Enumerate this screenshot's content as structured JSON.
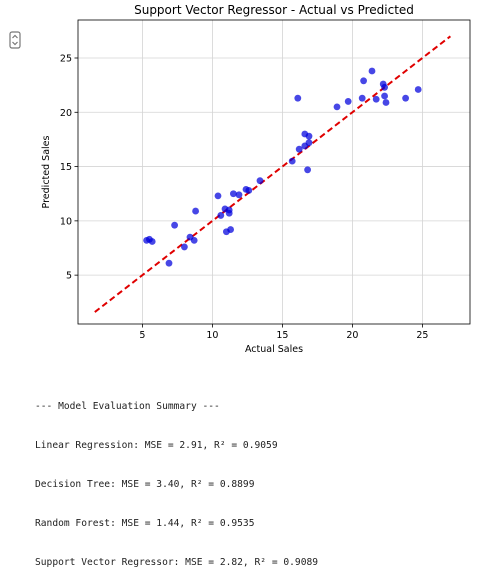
{
  "chart_data": {
    "type": "scatter",
    "title": "Support Vector Regressor - Actual vs Predicted",
    "xlabel": "Actual Sales",
    "ylabel": "Predicted Sales",
    "xlim": [
      0.4,
      28.4
    ],
    "ylim": [
      0.5,
      28.5
    ],
    "xticks": [
      5,
      10,
      15,
      20,
      25
    ],
    "yticks": [
      5,
      10,
      15,
      20,
      25
    ],
    "grid": true,
    "point_color": "#0000dd",
    "line_color": "#e00000",
    "reference_line": [
      [
        1.6,
        1.6
      ],
      [
        27.0,
        27.0
      ]
    ],
    "points": [
      [
        5.3,
        8.2
      ],
      [
        5.5,
        8.3
      ],
      [
        5.7,
        8.1
      ],
      [
        6.9,
        6.1
      ],
      [
        7.3,
        9.6
      ],
      [
        8.0,
        7.6
      ],
      [
        8.4,
        8.5
      ],
      [
        8.7,
        8.2
      ],
      [
        8.8,
        10.9
      ],
      [
        10.4,
        12.3
      ],
      [
        10.6,
        10.5
      ],
      [
        10.9,
        11.1
      ],
      [
        11.0,
        9.0
      ],
      [
        11.2,
        10.7
      ],
      [
        11.2,
        11.0
      ],
      [
        11.3,
        9.2
      ],
      [
        11.5,
        12.5
      ],
      [
        11.9,
        12.4
      ],
      [
        12.4,
        12.9
      ],
      [
        12.6,
        12.8
      ],
      [
        13.4,
        13.7
      ],
      [
        15.7,
        15.5
      ],
      [
        16.1,
        21.3
      ],
      [
        16.2,
        16.6
      ],
      [
        16.6,
        16.9
      ],
      [
        16.6,
        18.0
      ],
      [
        16.8,
        14.7
      ],
      [
        16.9,
        17.2
      ],
      [
        16.9,
        17.8
      ],
      [
        18.9,
        20.5
      ],
      [
        19.7,
        21.0
      ],
      [
        20.7,
        21.3
      ],
      [
        20.8,
        22.9
      ],
      [
        21.4,
        23.8
      ],
      [
        21.7,
        21.2
      ],
      [
        22.2,
        22.6
      ],
      [
        22.3,
        21.5
      ],
      [
        22.3,
        22.3
      ],
      [
        22.4,
        20.9
      ],
      [
        23.8,
        21.3
      ],
      [
        24.7,
        22.1
      ]
    ]
  },
  "summary": {
    "header": "--- Model Evaluation Summary ---",
    "lines": [
      "Linear Regression: MSE = 2.91, R² = 0.9059",
      "Decision Tree: MSE = 3.40, R² = 0.8899",
      "Random Forest: MSE = 1.44, R² = 0.9535",
      "Support Vector Regressor: MSE = 2.82, R² = 0.9089"
    ]
  }
}
